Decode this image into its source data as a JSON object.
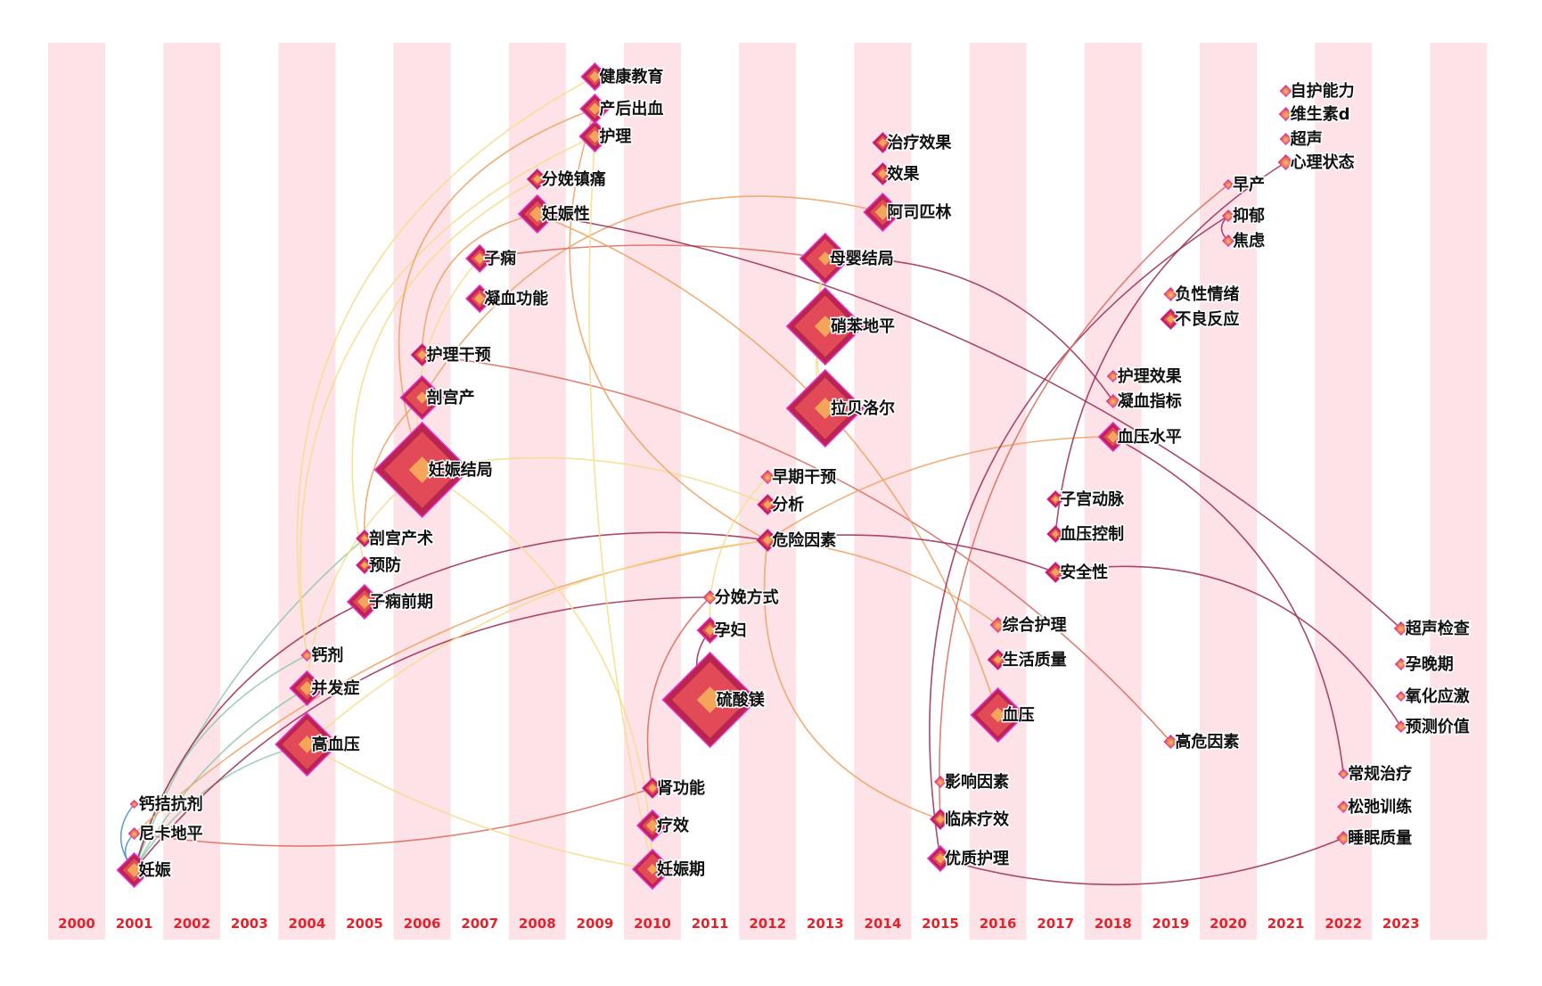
{
  "colors": {
    "band": "#fde3e8",
    "year_label": "#e8202a",
    "node_border": "#ec2ed1",
    "node_ring_outer": "#b8254f",
    "node_ring_mid": "#e24a57",
    "node_core": "#f5a55a",
    "link_palette": [
      "#9b2a55",
      "#d96a5a",
      "#f0a060",
      "#f6dc8a",
      "#8fc9a8",
      "#4a8fc9"
    ]
  },
  "years": [
    "2000",
    "2001",
    "2002",
    "2003",
    "2004",
    "2005",
    "2006",
    "2007",
    "2008",
    "2009",
    "2010",
    "2011",
    "2012",
    "2013",
    "2014",
    "2015",
    "2016",
    "2017",
    "2018",
    "2019",
    "2020",
    "2021",
    "2022",
    "2023"
  ],
  "keywords": [
    {
      "id": "k1",
      "label": "妊娠",
      "year": "2001"
    },
    {
      "id": "k2",
      "label": "尼卡地平",
      "year": "2001"
    },
    {
      "id": "k3",
      "label": "钙拮抗剂",
      "year": "2001"
    },
    {
      "id": "k4",
      "label": "高血压",
      "year": "2004"
    },
    {
      "id": "k5",
      "label": "并发症",
      "year": "2004"
    },
    {
      "id": "k6",
      "label": "钙剂",
      "year": "2004"
    },
    {
      "id": "k7",
      "label": "子痫前期",
      "year": "2005"
    },
    {
      "id": "k8",
      "label": "预防",
      "year": "2005"
    },
    {
      "id": "k9",
      "label": "剖宫产术",
      "year": "2005"
    },
    {
      "id": "k10",
      "label": "妊娠结局",
      "year": "2006"
    },
    {
      "id": "k11",
      "label": "剖宫产",
      "year": "2006"
    },
    {
      "id": "k12",
      "label": "护理干预",
      "year": "2006"
    },
    {
      "id": "k13",
      "label": "凝血功能",
      "year": "2007"
    },
    {
      "id": "k14",
      "label": "子痫",
      "year": "2007"
    },
    {
      "id": "k15",
      "label": "妊娠性",
      "year": "2008"
    },
    {
      "id": "k16",
      "label": "分娩镇痛",
      "year": "2008"
    },
    {
      "id": "k17",
      "label": "护理",
      "year": "2009"
    },
    {
      "id": "k18",
      "label": "产后出血",
      "year": "2009"
    },
    {
      "id": "k19",
      "label": "健康教育",
      "year": "2009"
    },
    {
      "id": "k20",
      "label": "妊娠期",
      "year": "2010"
    },
    {
      "id": "k21",
      "label": "疗效",
      "year": "2010"
    },
    {
      "id": "k22",
      "label": "肾功能",
      "year": "2010"
    },
    {
      "id": "k23",
      "label": "硫酸镁",
      "year": "2011"
    },
    {
      "id": "k24",
      "label": "孕妇",
      "year": "2011"
    },
    {
      "id": "k25",
      "label": "分娩方式",
      "year": "2011"
    },
    {
      "id": "k26",
      "label": "危险因素",
      "year": "2012"
    },
    {
      "id": "k27",
      "label": "分析",
      "year": "2012"
    },
    {
      "id": "k28",
      "label": "早期干预",
      "year": "2012"
    },
    {
      "id": "k29",
      "label": "拉贝洛尔",
      "year": "2013"
    },
    {
      "id": "k30",
      "label": "硝苯地平",
      "year": "2013"
    },
    {
      "id": "k31",
      "label": "母婴结局",
      "year": "2013"
    },
    {
      "id": "k32",
      "label": "阿司匹林",
      "year": "2014"
    },
    {
      "id": "k33",
      "label": "效果",
      "year": "2014"
    },
    {
      "id": "k34",
      "label": "治疗效果",
      "year": "2014"
    },
    {
      "id": "k35",
      "label": "优质护理",
      "year": "2015"
    },
    {
      "id": "k36",
      "label": "临床疗效",
      "year": "2015"
    },
    {
      "id": "k37",
      "label": "影响因素",
      "year": "2015"
    },
    {
      "id": "k38",
      "label": "血压",
      "year": "2016"
    },
    {
      "id": "k39",
      "label": "生活质量",
      "year": "2016"
    },
    {
      "id": "k40",
      "label": "综合护理",
      "year": "2016"
    },
    {
      "id": "k41",
      "label": "安全性",
      "year": "2017"
    },
    {
      "id": "k42",
      "label": "血压控制",
      "year": "2017"
    },
    {
      "id": "k43",
      "label": "子宫动脉",
      "year": "2017"
    },
    {
      "id": "k44",
      "label": "血压水平",
      "year": "2018"
    },
    {
      "id": "k45",
      "label": "凝血指标",
      "year": "2018"
    },
    {
      "id": "k46",
      "label": "护理效果",
      "year": "2018"
    },
    {
      "id": "k47",
      "label": "高危因素",
      "year": "2019"
    },
    {
      "id": "k48",
      "label": "不良反应",
      "year": "2019"
    },
    {
      "id": "k49",
      "label": "负性情绪",
      "year": "2019"
    },
    {
      "id": "k50",
      "label": "焦虑",
      "year": "2020"
    },
    {
      "id": "k51",
      "label": "抑郁",
      "year": "2020"
    },
    {
      "id": "k52",
      "label": "早产",
      "year": "2020"
    },
    {
      "id": "k53",
      "label": "心理状态",
      "year": "2021"
    },
    {
      "id": "k54",
      "label": "超声",
      "year": "2021"
    },
    {
      "id": "k55",
      "label": "维生素d",
      "year": "2021"
    },
    {
      "id": "k56",
      "label": "自护能力",
      "year": "2021"
    },
    {
      "id": "k57",
      "label": "睡眠质量",
      "year": "2022"
    },
    {
      "id": "k58",
      "label": "松弛训练",
      "year": "2022"
    },
    {
      "id": "k59",
      "label": "常规治疗",
      "year": "2022"
    },
    {
      "id": "k60",
      "label": "预测价值",
      "year": "2023"
    },
    {
      "id": "k61",
      "label": "氧化应激",
      "year": "2023"
    },
    {
      "id": "k62",
      "label": "孕晚期",
      "year": "2023"
    },
    {
      "id": "k63",
      "label": "超声检查",
      "year": "2023"
    }
  ]
}
